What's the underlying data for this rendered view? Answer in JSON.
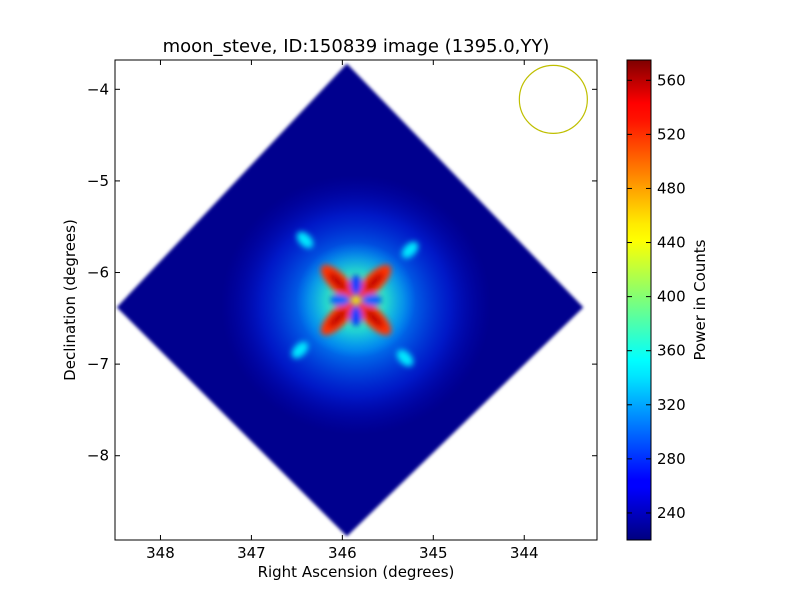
{
  "chart_data": {
    "type": "heatmap",
    "title": "moon_steve, ID:150839 image (1395.0,YY)",
    "xlabel": "Right Ascension (degrees)",
    "ylabel": "Declination (degrees)",
    "xlim": [
      348.5,
      343.2
    ],
    "ylim": [
      -8.92,
      -3.68
    ],
    "x_ticks": [
      348,
      347,
      346,
      345,
      344
    ],
    "x_tick_labels": [
      "348",
      "347",
      "346",
      "345",
      "344"
    ],
    "y_ticks": [
      -4,
      -5,
      -6,
      -7,
      -8
    ],
    "y_tick_labels": [
      "−4",
      "−5",
      "−6",
      "−7",
      "−8"
    ],
    "colorbar": {
      "label": "Power in Counts",
      "range": [
        220,
        575
      ],
      "ticks": [
        240,
        280,
        320,
        360,
        400,
        440,
        480,
        520,
        560
      ],
      "tick_labels": [
        "240",
        "280",
        "320",
        "360",
        "400",
        "440",
        "480",
        "520",
        "560"
      ],
      "colormap": "jet"
    },
    "footprint": {
      "shape": "diamond",
      "center": [
        345.95,
        -6.38
      ],
      "corners": [
        [
          345.95,
          -3.72
        ],
        [
          348.48,
          -6.38
        ],
        [
          345.95,
          -8.88
        ],
        [
          343.35,
          -6.38
        ]
      ],
      "background_value": 228
    },
    "source": {
      "center": [
        345.95,
        -6.38
      ],
      "peak_value": 560,
      "pattern": "four-lobed cross"
    },
    "beam_circle": {
      "center": [
        343.68,
        -4.11
      ],
      "color": "#bfbf00"
    }
  }
}
